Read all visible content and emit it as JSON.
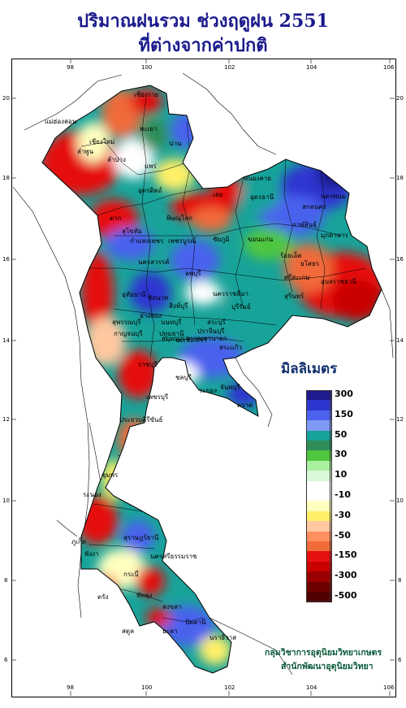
{
  "title_line1": "ปริมาณฝนรวม ช่วงฤดูฝน 2551",
  "title_line2": "ที่ต่างจากค่าปกติ",
  "axes": {
    "x_ticks": [
      "98",
      "100",
      "102",
      "104",
      "106"
    ],
    "y_ticks": [
      "20",
      "18",
      "16",
      "14",
      "12",
      "10",
      "8",
      "6"
    ]
  },
  "legend": {
    "title": "มิลลิเมตร",
    "items": [
      {
        "label": "300",
        "color": "#1e1a8f"
      },
      {
        "label": "",
        "color": "#2e36d0"
      },
      {
        "label": "150",
        "color": "#4a62ee"
      },
      {
        "label": "",
        "color": "#7e9af4"
      },
      {
        "label": "50",
        "color": "#18a39a"
      },
      {
        "label": "",
        "color": "#2f8e58"
      },
      {
        "label": "30",
        "color": "#4fc63f"
      },
      {
        "label": "",
        "color": "#a8f0a0"
      },
      {
        "label": "10",
        "color": "#d8f8d8"
      },
      {
        "label": "",
        "color": "#ffffff"
      },
      {
        "label": "-10",
        "color": "#ffffff"
      },
      {
        "label": "",
        "color": "#ffffc0"
      },
      {
        "label": "-30",
        "color": "#fff068"
      },
      {
        "label": "",
        "color": "#ffc8a0"
      },
      {
        "label": "-50",
        "color": "#ff9060"
      },
      {
        "label": "",
        "color": "#f06a3a"
      },
      {
        "label": "-150",
        "color": "#e61010"
      },
      {
        "label": "",
        "color": "#c80000"
      },
      {
        "label": "-300",
        "color": "#9a0000"
      },
      {
        "label": "",
        "color": "#700000"
      },
      {
        "label": "-500",
        "color": "#500000"
      }
    ]
  },
  "credit_line1": "กลุ่มวิชาการอุตุนิยมวิทยาเกษตร",
  "credit_line2": "สำนักพัฒนาอุตุนิยมวิทยา",
  "places": [
    "เชียงราย",
    "แม่ฮ่องสอน",
    "เชียงใหม่",
    "ลำพูน",
    "ลำปาง",
    "พะเยา",
    "น่าน",
    "แพร่",
    "อุตรดิตถ์",
    "ตาก",
    "สุโขทัย",
    "พิษณุโลก",
    "เลย",
    "หนองคาย",
    "อุดรธานี",
    "สกลนคร",
    "นครพนม",
    "มุกดาหาร",
    "ขอนแก่น",
    "กาฬสินธุ์",
    "ร้อยเอ็ด",
    "ยโสธร",
    "อุบลราชธานี",
    "ชัยภูมิ",
    "นครสวรรค์",
    "ลพบุรี",
    "นครราชสีมา",
    "บุรีรัมย์",
    "สุรินทร์",
    "สุพรรณบุรี",
    "กาญจนบุรี",
    "ปทุมธานี",
    "ปราจีนบุรี",
    "สระแก้ว",
    "ราชบุรี",
    "ชลบุรี",
    "ระยอง",
    "จันทบุรี",
    "ตราด",
    "เพชรบุรี",
    "ประจวบคีรีขันธ์",
    "ชุมพร",
    "ระนอง",
    "สุราษฎร์ธานี",
    "ภูเก็ต",
    "นครศรีธรรมราช",
    "พังงา",
    "กระบี่",
    "ตรัง",
    "สงขลา",
    "สตูล",
    "ปัตตานี",
    "นราธิวาส",
    "กำแพงเพชร",
    "เพชรบูรณ์",
    "อุทัยธานี",
    "ชัยนาท",
    "สิงห์บุรี",
    "อ่างทอง",
    "นนทบุรี",
    "สมุทรปราการ",
    "ฉะเชิงเทรา",
    "นครนายก",
    "สระบุรี",
    "พัทลุง",
    "ยะลา",
    "ศรีสะเกษ"
  ]
}
